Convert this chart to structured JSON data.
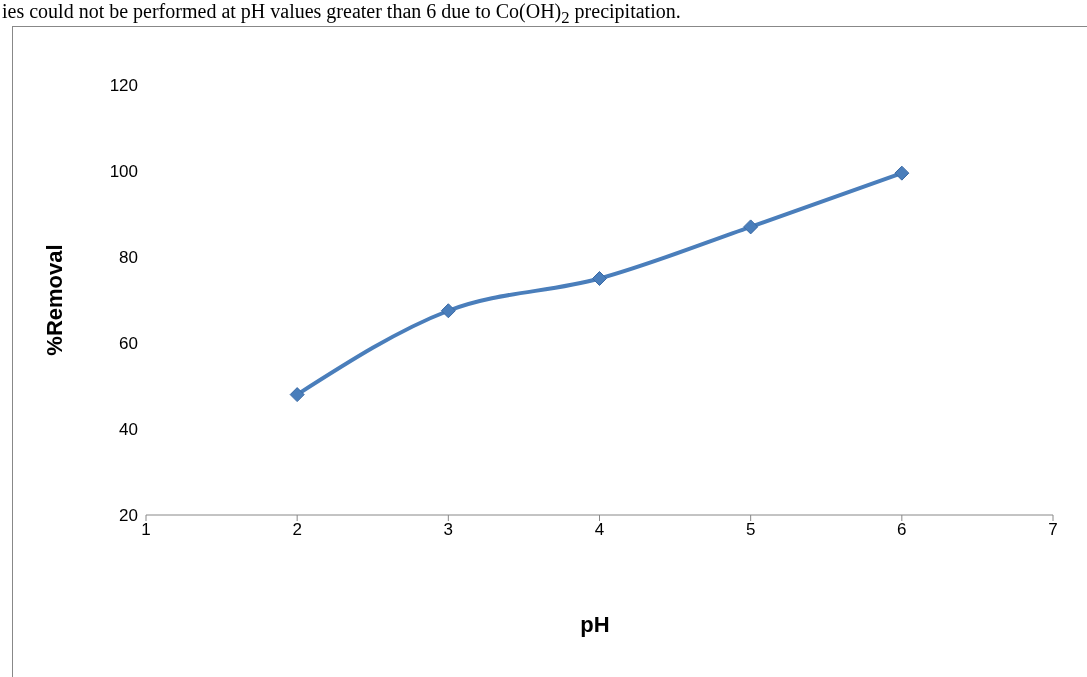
{
  "chart_data": {
    "type": "line",
    "xlabel": "pH",
    "ylabel": "%Removal",
    "annotations": [
      "ies could not be performed at pH values greater than 6 due to Co(OH)$_{2}$ precipitation."
    ],
    "x": [
      2,
      3,
      4,
      5,
      6
    ],
    "series": [
      {
        "color": "#4a7ebb",
        "values": [
          48,
          67.5,
          75,
          87,
          99.5
        ]
      }
    ],
    "xlim": [
      1,
      7
    ],
    "xticks": [
      1,
      2,
      3,
      4,
      5,
      6,
      7
    ],
    "ylim": [
      20,
      120
    ],
    "yticks": [
      20,
      40,
      60,
      80,
      100,
      120
    ],
    "grid": false,
    "legend": false,
    "marker": "diamond",
    "line_style": "solid"
  }
}
